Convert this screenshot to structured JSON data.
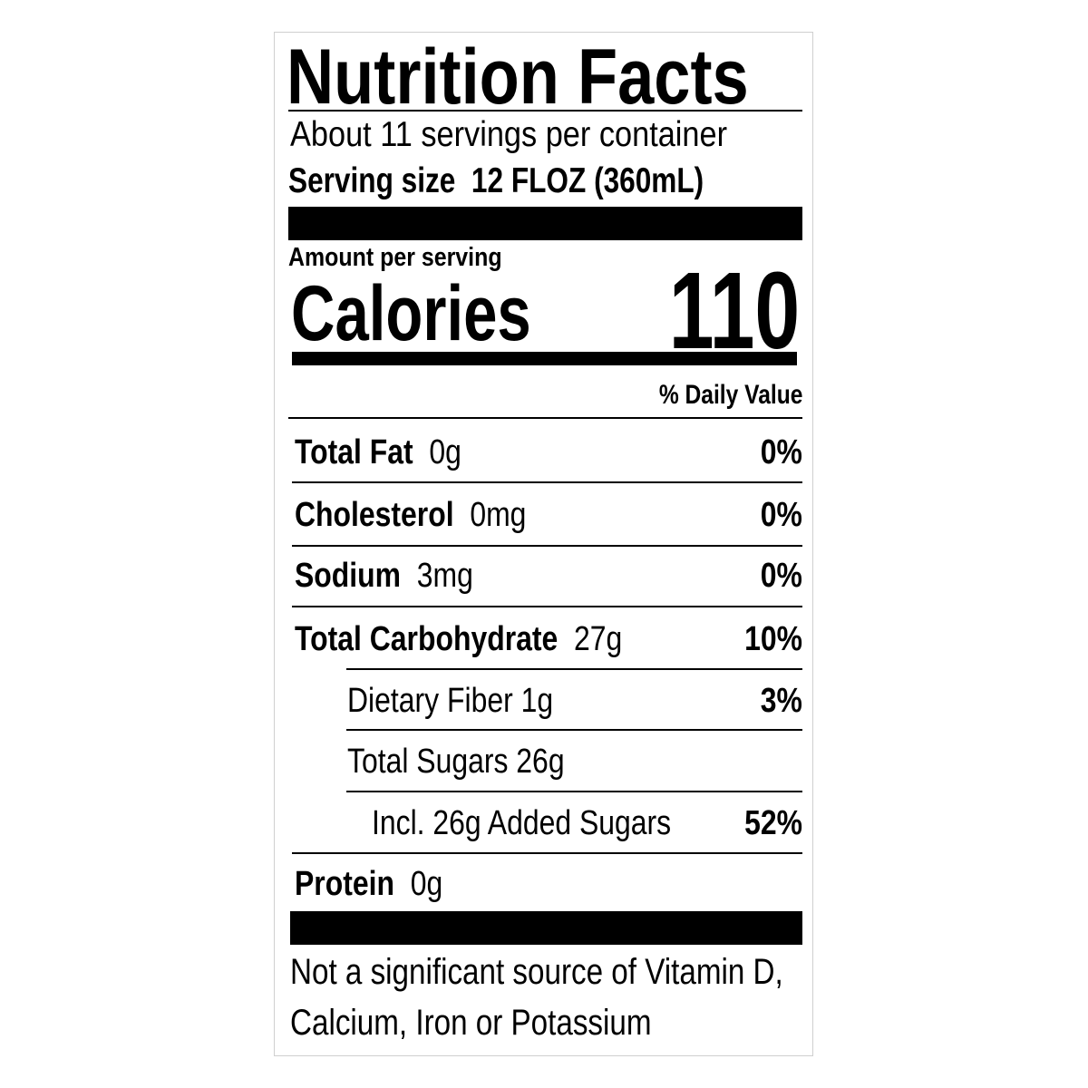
{
  "title": "Nutrition Facts",
  "servings_per_container": "About 11 servings per container",
  "serving_size": {
    "label": "Serving size",
    "value": "12 FLOZ (360mL)"
  },
  "amount_per_serving": "Amount per serving",
  "calories": {
    "label": "Calories",
    "value": "110"
  },
  "daily_value_header": "% Daily Value",
  "nutrients": [
    {
      "name": "Total Fat",
      "amount": "0g",
      "dv": "0%",
      "bold": true,
      "indent": 0
    },
    {
      "name": "Cholesterol",
      "amount": "0mg",
      "dv": "0%",
      "bold": true,
      "indent": 0
    },
    {
      "name": "Sodium",
      "amount": "3mg",
      "dv": "0%",
      "bold": true,
      "indent": 0
    },
    {
      "name": "Total Carbohydrate",
      "amount": "27g",
      "dv": "10%",
      "bold": true,
      "indent": 0
    },
    {
      "name": "Dietary Fiber",
      "amount": "1g",
      "dv": "3%",
      "bold": false,
      "indent": 1
    },
    {
      "name": "Total Sugars",
      "amount": "26g",
      "dv": "",
      "bold": false,
      "indent": 1
    },
    {
      "name": "Incl. 26g Added Sugars",
      "amount": "",
      "dv": "52%",
      "bold": false,
      "indent": 2
    },
    {
      "name": "Protein",
      "amount": "0g",
      "dv": "",
      "bold": true,
      "indent": 0
    }
  ],
  "footer": [
    "Not a significant source of Vitamin D,",
    "Calcium, Iron or Potassium"
  ]
}
